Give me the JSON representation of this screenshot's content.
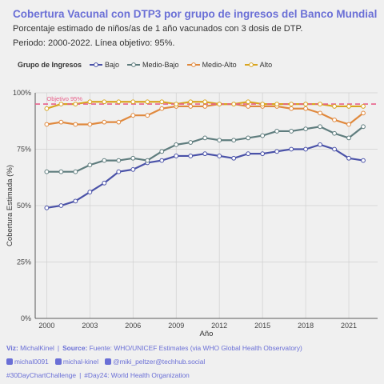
{
  "header": {
    "title": "Cobertura Vacunal con DTP3 por grupo de ingresos del Banco Mundial",
    "subtitle1": "Porcentaje estimado de niños/as de 1 año vacunados con 3 dosis de DTP.",
    "subtitle2": "Periodo: 2000-2022. Línea objetivo: 95%."
  },
  "legend": {
    "title": "Grupo de Ingresos"
  },
  "footer": {
    "viz_label": "Viz:",
    "viz_value": "MichalKinel",
    "source_label": "Source:",
    "source_value": "Fuente: WHO/UNICEF Estimates (via WHO Global Health Observatory)",
    "github": "michal0091",
    "linkedin": "michal-kinel",
    "mastodon": "@miki_peltzer@techhub.social",
    "hashtag1": "#30DayChartChallenge",
    "hashtag2": "#Day24: World Health Organization"
  },
  "chart_data": {
    "type": "line",
    "x": [
      2000,
      2001,
      2002,
      2003,
      2004,
      2005,
      2006,
      2007,
      2008,
      2009,
      2010,
      2011,
      2012,
      2013,
      2014,
      2015,
      2016,
      2017,
      2018,
      2019,
      2020,
      2021,
      2022
    ],
    "xlabel": "Año",
    "ylabel": "Cobertura Estimada (%)",
    "xticks": [
      2000,
      2003,
      2006,
      2009,
      2012,
      2015,
      2018,
      2021
    ],
    "yticks": [
      0,
      25,
      50,
      75,
      100
    ],
    "ytick_labels": [
      "0%",
      "25%",
      "50%",
      "75%",
      "100%"
    ],
    "xlim": [
      1999.2,
      2023
    ],
    "ylim": [
      0,
      100
    ],
    "target": {
      "value": 95,
      "label": "Objetivo 95%",
      "color": "#e8608a"
    },
    "series": [
      {
        "name": "Bajo",
        "color": "#4a52a8",
        "values": [
          49,
          50,
          52,
          56,
          60,
          65,
          66,
          69,
          70,
          72,
          72,
          73,
          72,
          71,
          73,
          73,
          74,
          75,
          75,
          77,
          75,
          71,
          70
        ]
      },
      {
        "name": "Medio-Bajo",
        "color": "#5f7d7e",
        "values": [
          65,
          65,
          65,
          68,
          70,
          70,
          71,
          70,
          74,
          77,
          78,
          80,
          79,
          79,
          80,
          81,
          83,
          83,
          84,
          85,
          82,
          80,
          85
        ]
      },
      {
        "name": "Medio-Alto",
        "color": "#e0893e",
        "values": [
          86,
          87,
          86,
          86,
          87,
          87,
          90,
          90,
          93,
          94,
          94,
          94,
          95,
          95,
          94,
          94,
          94,
          93,
          93,
          91,
          88,
          86,
          91
        ]
      },
      {
        "name": "Alto",
        "color": "#d9a520",
        "values": [
          93,
          95,
          95,
          96,
          96,
          96,
          96,
          96,
          96,
          95,
          96,
          96,
          95,
          95,
          96,
          95,
          95,
          95,
          95,
          95,
          94,
          94,
          94
        ]
      }
    ],
    "legend_position": "top-left",
    "grid": true
  }
}
